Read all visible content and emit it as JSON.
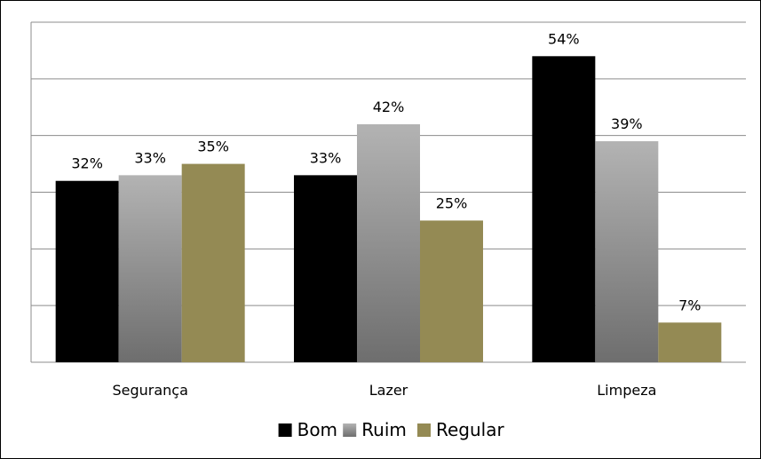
{
  "chart_data": {
    "type": "bar",
    "categories": [
      "Segurança",
      "Lazer",
      "Limpeza"
    ],
    "series": [
      {
        "name": "Bom",
        "values": [
          32,
          33,
          54
        ],
        "labels": [
          "32%",
          "33%",
          "54%"
        ]
      },
      {
        "name": "Ruim",
        "values": [
          33,
          42,
          39
        ],
        "labels": [
          "33%",
          "42%",
          "39%"
        ]
      },
      {
        "name": "Regular",
        "values": [
          35,
          25,
          7
        ],
        "labels": [
          "35%",
          "25%",
          "7%"
        ]
      }
    ],
    "ylim": [
      0,
      60
    ],
    "yticks": [
      0,
      10,
      20,
      30,
      40,
      50,
      60
    ],
    "y_axis_labels_shown": false,
    "grid": true,
    "legend_position": "bottom",
    "colors": {
      "Bom": "#000000",
      "Ruim": "#a6a6a6",
      "Regular": "#948a54",
      "grid": "#8c8c8c"
    }
  }
}
